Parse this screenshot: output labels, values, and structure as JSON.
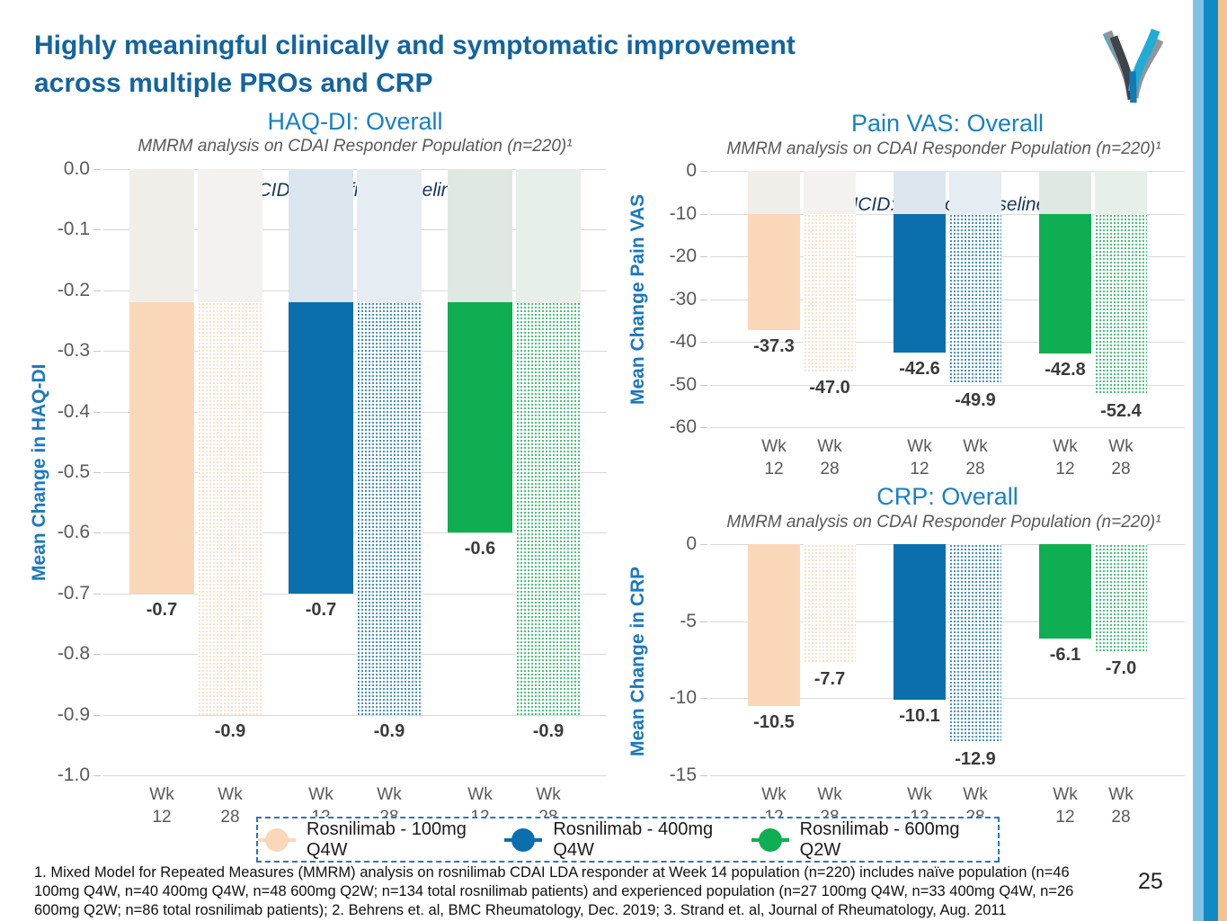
{
  "page": {
    "title_line1": "Highly meaningful clinically and symptomatic improvement",
    "title_line2": "across multiple PROs and CRP",
    "page_number": "25",
    "footnote": "1. Mixed Model for Repeated Measures (MMRM) analysis on rosnilimab CDAI LDA responder at Week 14 population (n=220) includes naïve population (n=46 100mg Q4W, n=40 400mg Q4W, n=48 600mg Q2W; n=134 total rosnilimab patients) and experienced population (n=27 100mg Q4W, n=33 400mg Q4W, n=26 600mg Q2W; n=86 total rosnilimab patients); 2. Behrens et. al, BMC Rheumatology, Dec. 2019; 3. Strand et. al, Journal of Rheumatology, Aug. 2011"
  },
  "colors": {
    "title_blue": "#14649f",
    "chart_title_blue": "#1a80c5",
    "axis_title_blue": "#1b78c0",
    "mcid_navy": "#17375e",
    "gridline": "#d9d9d9",
    "legend_border_blue": "#2e75b6",
    "stripe_light_blue": "#7fc2e3",
    "stripe_dark_blue": "#0e8ac6",
    "stripe_peach": "#f5c38e"
  },
  "chart_series": [
    {
      "name": "Rosnilimab - 100mg Q4W",
      "color": "#fbd7ba",
      "faded": "#f1eeea",
      "faded_hatch": "#f4f1ee"
    },
    {
      "name": "Rosnilimab - 400mg Q4W",
      "color": "#0b6fad",
      "faded": "#dce6ee",
      "faded_hatch": "#e5ecf2"
    },
    {
      "name": "Rosnilimab - 600mg Q2W",
      "color": "#10ae52",
      "faded": "#dfe9e2",
      "faded_hatch": "#e7efe9"
    }
  ],
  "chart_data": [
    {
      "type": "bar",
      "title": "HAQ-DI: Overall",
      "subtitle": "MMRM analysis on CDAI Responder Population (n=220)¹",
      "annotation": "MCID: -0.22 from baseline²",
      "ylabel": "Mean Change in HAQ-DI",
      "xlabel": "",
      "ylim": [
        -1.0,
        0
      ],
      "yticks": [
        "0.0",
        "-0.1",
        "-0.2",
        "-0.3",
        "-0.4",
        "-0.5",
        "-0.6",
        "-0.7",
        "-0.8",
        "-0.9",
        "-1.0"
      ],
      "mcid_value": -0.22,
      "grid": true,
      "legend_position": "shared-bottom",
      "groups": [
        {
          "series": "Rosnilimab - 100mg Q4W",
          "bars": [
            {
              "x": "Wk\n12",
              "value": -0.7,
              "label": "-0.7",
              "fill": "solid"
            },
            {
              "x": "Wk\n28",
              "value": -0.9,
              "label": "-0.9",
              "fill": "hatch"
            }
          ]
        },
        {
          "series": "Rosnilimab - 400mg Q4W",
          "bars": [
            {
              "x": "Wk\n12",
              "value": -0.7,
              "label": "-0.7",
              "fill": "solid"
            },
            {
              "x": "Wk\n28",
              "value": -0.9,
              "label": "-0.9",
              "fill": "hatch"
            }
          ]
        },
        {
          "series": "Rosnilimab - 600mg Q2W",
          "bars": [
            {
              "x": "Wk\n12",
              "value": -0.6,
              "label": "-0.6",
              "fill": "solid"
            },
            {
              "x": "Wk\n28",
              "value": -0.9,
              "label": "-0.9",
              "fill": "hatch"
            }
          ]
        }
      ]
    },
    {
      "type": "bar",
      "title": "Pain VAS: Overall",
      "subtitle": "MMRM analysis on CDAI Responder Population (n=220)¹",
      "annotation": "MCID: -10 from baseline³",
      "ylabel": "Mean Change Pain VAS",
      "xlabel": "",
      "ylim": [
        -60,
        0
      ],
      "yticks": [
        "0",
        "-10",
        "-20",
        "-30",
        "-40",
        "-50",
        "-60"
      ],
      "mcid_value": -10,
      "grid": true,
      "legend_position": "shared-bottom",
      "groups": [
        {
          "series": "Rosnilimab - 100mg Q4W",
          "bars": [
            {
              "x": "Wk\n12",
              "value": -37.3,
              "label": "-37.3",
              "fill": "solid"
            },
            {
              "x": "Wk\n28",
              "value": -47.0,
              "label": "-47.0",
              "fill": "hatch"
            }
          ]
        },
        {
          "series": "Rosnilimab - 400mg Q4W",
          "bars": [
            {
              "x": "Wk\n12",
              "value": -42.6,
              "label": "-42.6",
              "fill": "solid"
            },
            {
              "x": "Wk\n28",
              "value": -49.9,
              "label": "-49.9",
              "fill": "hatch"
            }
          ]
        },
        {
          "series": "Rosnilimab - 600mg Q2W",
          "bars": [
            {
              "x": "Wk\n12",
              "value": -42.8,
              "label": "-42.8",
              "fill": "solid"
            },
            {
              "x": "Wk\n28",
              "value": -52.4,
              "label": "-52.4",
              "fill": "hatch"
            }
          ]
        }
      ]
    },
    {
      "type": "bar",
      "title": "CRP: Overall",
      "subtitle": "MMRM analysis on CDAI Responder Population (n=220)¹",
      "annotation": "",
      "ylabel": "Mean Change in CRP",
      "xlabel": "",
      "ylim": [
        -15,
        0
      ],
      "yticks": [
        "0",
        "-5",
        "-10",
        "-15"
      ],
      "mcid_value": 0,
      "grid": true,
      "legend_position": "shared-bottom",
      "groups": [
        {
          "series": "Rosnilimab - 100mg Q4W",
          "bars": [
            {
              "x": "Wk\n12",
              "value": -10.5,
              "label": "-10.5",
              "fill": "solid"
            },
            {
              "x": "Wk\n28",
              "value": -7.7,
              "label": "-7.7",
              "fill": "hatch"
            }
          ]
        },
        {
          "series": "Rosnilimab - 400mg Q4W",
          "bars": [
            {
              "x": "Wk\n12",
              "value": -10.1,
              "label": "-10.1",
              "fill": "solid"
            },
            {
              "x": "Wk\n28",
              "value": -12.9,
              "label": "-12.9",
              "fill": "hatch"
            }
          ]
        },
        {
          "series": "Rosnilimab - 600mg Q2W",
          "bars": [
            {
              "x": "Wk\n12",
              "value": -6.1,
              "label": "-6.1",
              "fill": "solid"
            },
            {
              "x": "Wk\n28",
              "value": -7.0,
              "label": "-7.0",
              "fill": "hatch"
            }
          ]
        }
      ]
    }
  ]
}
